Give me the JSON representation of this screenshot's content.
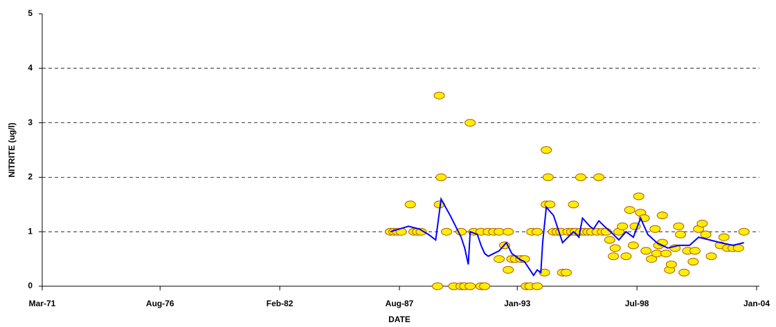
{
  "chart_data": {
    "type": "scatter",
    "xlabel": "DATE",
    "ylabel": "NITRITE (ug/l)",
    "xlim": [
      "1971-03",
      "2004-01"
    ],
    "xticks": [
      {
        "value": "1971-03",
        "label": "Mar-71"
      },
      {
        "value": "1976-08",
        "label": "Aug-76"
      },
      {
        "value": "1982-02",
        "label": "Feb-82"
      },
      {
        "value": "1987-08",
        "label": "Aug-87"
      },
      {
        "value": "1993-01",
        "label": "Jan-93"
      },
      {
        "value": "1998-07",
        "label": "Jul-98"
      },
      {
        "value": "2004-01",
        "label": "Jan-04"
      }
    ],
    "ylim": [
      0,
      5
    ],
    "yticks": [
      0,
      1,
      2,
      3,
      4,
      5
    ],
    "grid": true,
    "series": [
      {
        "mode": "markers",
        "color": "#ffee00",
        "edgecolor": "#b05a00",
        "x": [
          "1987-03",
          "1987-05",
          "1987-07",
          "1987-09",
          "1988-02",
          "1988-04",
          "1988-06",
          "1988-08",
          "1989-05",
          "1989-06",
          "1989-06",
          "1989-07",
          "1989-10",
          "1990-02",
          "1990-06",
          "1990-08",
          "1990-06",
          "1990-11",
          "1990-11",
          "1991-01",
          "1991-05",
          "1991-05",
          "1991-07",
          "1991-09",
          "1991-12",
          "1992-03",
          "1992-03",
          "1992-06",
          "1992-08",
          "1992-08",
          "1992-10",
          "1992-12",
          "1993-03",
          "1993-05",
          "1993-06",
          "1993-08",
          "1993-09",
          "1993-12",
          "1993-12",
          "1994-04",
          "1994-05",
          "1994-06",
          "1994-05",
          "1994-07",
          "1994-09",
          "1994-11",
          "1995-01",
          "1995-02",
          "1995-04",
          "1995-05",
          "1995-08",
          "1995-07",
          "1995-09",
          "1995-12",
          "1995-12",
          "1996-02",
          "1996-04",
          "1996-06",
          "1996-09",
          "1996-10",
          "1996-12",
          "1997-02",
          "1997-04",
          "1997-06",
          "1997-07",
          "1997-09",
          "1997-11",
          "1998-01",
          "1998-03",
          "1998-05",
          "1998-06",
          "1998-08",
          "1998-09",
          "1998-11",
          "1998-12",
          "1999-03",
          "1999-05",
          "1999-06",
          "1999-07",
          "1999-09",
          "1999-09",
          "1999-11",
          "2000-01",
          "2000-02",
          "2000-04",
          "2000-06",
          "2000-07",
          "2000-09",
          "2000-11",
          "2001-02",
          "2001-03",
          "2001-05",
          "2001-07",
          "2001-09",
          "2001-12",
          "2002-05",
          "2002-07",
          "2002-09",
          "2002-12",
          "2003-03",
          "2003-06"
        ],
        "values": [
          1,
          1,
          1,
          1,
          1.5,
          1,
          1,
          1,
          0,
          3.5,
          1.5,
          2,
          1,
          0,
          0,
          0,
          1,
          3,
          0,
          1,
          1,
          0,
          0,
          1,
          1,
          1,
          0.5,
          0.75,
          1,
          0.3,
          0.5,
          0.5,
          0.5,
          0.5,
          0,
          0,
          1,
          0,
          1,
          0.25,
          2.5,
          2,
          1.5,
          1.5,
          1,
          1,
          1,
          0.25,
          0.25,
          1,
          1.5,
          1,
          1,
          1,
          2,
          1,
          1,
          1,
          1,
          2,
          1,
          1,
          0.85,
          0.55,
          0.7,
          1,
          1.1,
          0.55,
          1.4,
          0.75,
          1.1,
          1.65,
          1.35,
          1.25,
          0.65,
          0.5,
          1.05,
          0.6,
          0.75,
          0.8,
          1.3,
          0.6,
          0.3,
          0.4,
          0.7,
          1.1,
          0.95,
          0.25,
          0.65,
          0.45,
          0.65,
          1.05,
          1.15,
          0.95,
          0.55,
          0.75,
          0.9,
          0.7,
          0.7,
          0.7,
          1
        ]
      },
      {
        "mode": "line",
        "color": "#0000ff",
        "x": [
          "1987-03",
          "1988-01",
          "1988-07",
          "1988-12",
          "1989-04",
          "1989-07",
          "1989-12",
          "1990-06",
          "1990-08",
          "1990-10",
          "1990-11",
          "1991-03",
          "1991-05",
          "1991-07",
          "1991-09",
          "1991-12",
          "1992-03",
          "1992-07",
          "1992-10",
          "1993-02",
          "1993-05",
          "1993-08",
          "1993-10",
          "1993-12",
          "1994-02",
          "1994-03",
          "1994-05",
          "1994-09",
          "1995-02",
          "1995-05",
          "1995-08",
          "1995-11",
          "1996-01",
          "1996-05",
          "1996-07",
          "1996-10",
          "1997-01",
          "1997-06",
          "1997-09",
          "1998-01",
          "1998-05",
          "1998-09",
          "1999-01",
          "1999-06",
          "1999-12",
          "2000-06",
          "2000-12",
          "2001-05",
          "2001-11",
          "2002-05",
          "2002-12",
          "2003-06"
        ],
        "values": [
          1,
          1.1,
          1.05,
          0.95,
          0.85,
          1.6,
          1.3,
          0.9,
          0.7,
          0.4,
          1,
          0.95,
          0.75,
          0.6,
          0.55,
          0.6,
          0.65,
          0.8,
          0.6,
          0.5,
          0.45,
          0.3,
          0.2,
          0.3,
          0.25,
          0.8,
          1.45,
          1.3,
          0.8,
          0.9,
          1,
          0.9,
          1.25,
          1.1,
          1.05,
          1.2,
          1.1,
          0.95,
          0.85,
          1,
          0.9,
          1.25,
          0.95,
          0.8,
          0.7,
          0.75,
          0.75,
          0.9,
          0.85,
          0.8,
          0.75,
          0.8
        ]
      }
    ]
  }
}
